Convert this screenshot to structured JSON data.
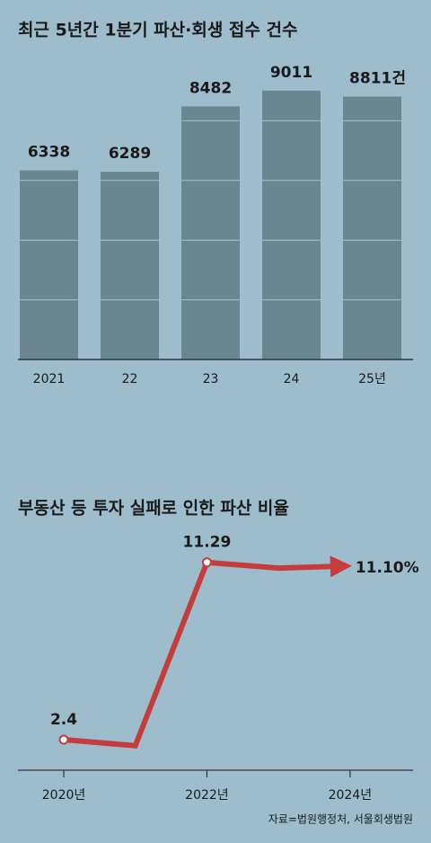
{
  "chart_data": [
    {
      "type": "bar",
      "title": "최근 5년간 1분기 파산·회생 접수 건수",
      "categories": [
        "2021",
        "22",
        "23",
        "24",
        "25년"
      ],
      "values": [
        6338,
        6289,
        8482,
        9011,
        8811
      ],
      "value_labels": [
        "6338",
        "6289",
        "8482",
        "9011",
        "8811건"
      ],
      "color": "#6a8690",
      "ylim": [
        0,
        10000
      ],
      "gridlines": [
        2000,
        4000,
        6000,
        8000
      ]
    },
    {
      "type": "line",
      "title": "부동산 등 투자 실패로 인한 파산 비율",
      "x": [
        2020,
        2021,
        2022,
        2023,
        2024
      ],
      "values": [
        2.4,
        2.1,
        11.29,
        11.0,
        11.1
      ],
      "value_labels": [
        "2.4",
        null,
        "11.29",
        null,
        "11.10%"
      ],
      "color": "#c63c3c",
      "xlim": [
        2019.36,
        2024.88
      ],
      "ylim": [
        0.87,
        12.9
      ],
      "xticks": [
        {
          "value": 2020,
          "label": "2020년"
        },
        {
          "value": 2022,
          "label": "2022년"
        },
        {
          "value": 2024,
          "label": "2024년"
        }
      ],
      "source": "자료=법원행정처, 서울회생법원"
    }
  ]
}
